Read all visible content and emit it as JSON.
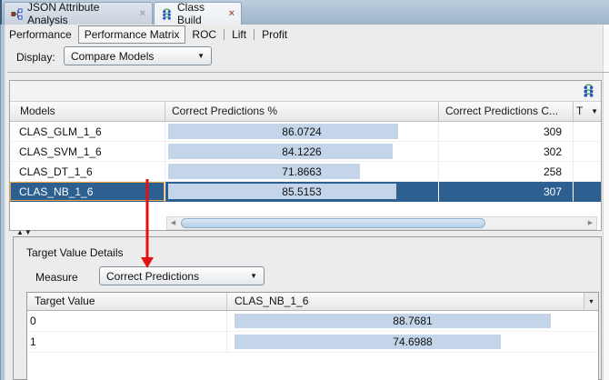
{
  "icons": {
    "dropdown": "▼",
    "menu": "▾",
    "close": "×",
    "scroll_left": "◀",
    "scroll_right": "▶",
    "splitter": "▲▼"
  },
  "colors": {
    "selected_row": "#2e5f91",
    "bar_fill": "#c4d5ea",
    "focus_border": "#e8a33c",
    "arrow_red": "#e31212",
    "tabbar_bg": "#9db4c9"
  },
  "window": {
    "tabs": [
      {
        "label": "JSON Attribute Analysis",
        "active": false
      },
      {
        "label": "Class Build",
        "active": true
      }
    ]
  },
  "subtabs": {
    "items": [
      "Performance",
      "Performance Matrix",
      "ROC",
      "Lift",
      "Profit"
    ],
    "selected": "Performance Matrix"
  },
  "display": {
    "label": "Display:",
    "value": "Compare Models"
  },
  "models_table": {
    "columns": {
      "models": "Models",
      "pct": "Correct Predictions %",
      "count": "Correct Predictions C...",
      "truncated": "T"
    },
    "selected_model": "CLAS_NB_1_6",
    "rows": [
      {
        "model": "CLAS_GLM_1_6",
        "pct_text": "86.0724",
        "pct": 86.0724,
        "count": "309"
      },
      {
        "model": "CLAS_SVM_1_6",
        "pct_text": "84.1226",
        "pct": 84.1226,
        "count": "302"
      },
      {
        "model": "CLAS_DT_1_6",
        "pct_text": "71.8663",
        "pct": 71.8663,
        "count": "258"
      },
      {
        "model": "CLAS_NB_1_6",
        "pct_text": "85.5153",
        "pct": 85.5153,
        "count": "307"
      }
    ]
  },
  "target_details": {
    "title": "Target Value Details",
    "measure_label": "Measure",
    "measure_value": "Correct Predictions",
    "columns": {
      "target": "Target Value",
      "model": "CLAS_NB_1_6"
    },
    "rows": [
      {
        "target": "0",
        "pct_text": "88.7681",
        "pct": 88.7681
      },
      {
        "target": "1",
        "pct_text": "74.6988",
        "pct": 74.6988
      }
    ]
  }
}
